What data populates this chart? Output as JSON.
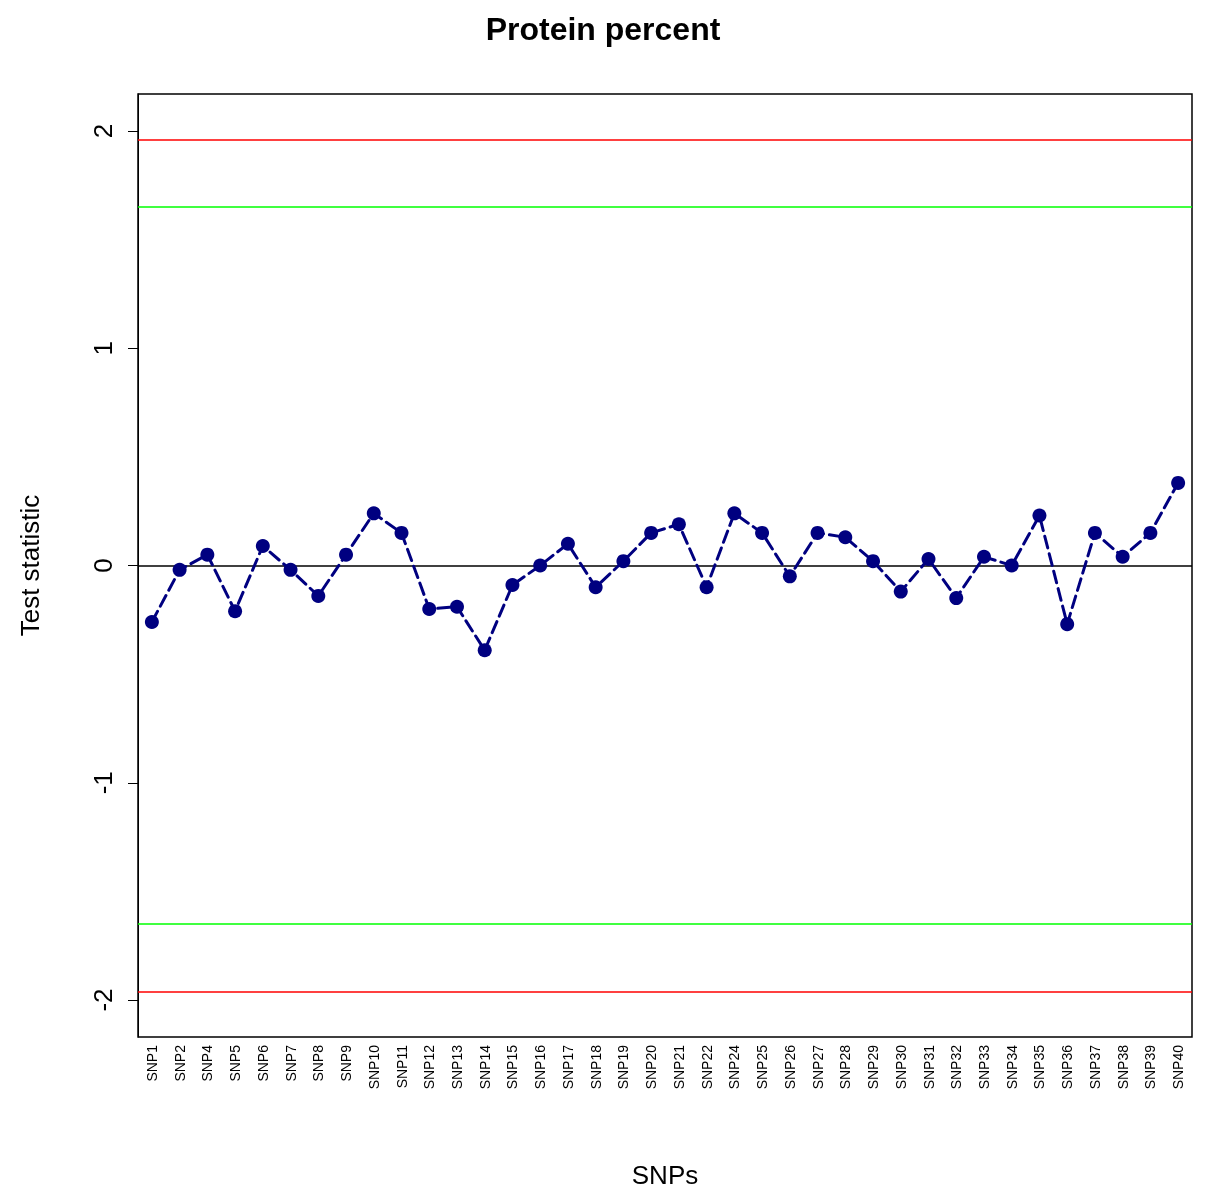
{
  "chart_data": {
    "type": "line",
    "title": "Protein percent",
    "xlabel": "SNPs",
    "ylabel": "Test statistic",
    "categories": [
      "SNP1",
      "SNP2",
      "SNP4",
      "SNP5",
      "SNP6",
      "SNP7",
      "SNP8",
      "SNP9",
      "SNP10",
      "SNP11",
      "SNP12",
      "SNP13",
      "SNP14",
      "SNP15",
      "SNP16",
      "SNP17",
      "SNP18",
      "SNP19",
      "SNP20",
      "SNP21",
      "SNP22",
      "SNP24",
      "SNP25",
      "SNP26",
      "SNP27",
      "SNP28",
      "SNP29",
      "SNP30",
      "SNP31",
      "SNP32",
      "SNP33",
      "SNP34",
      "SNP35",
      "SNP36",
      "SNP37",
      "SNP38",
      "SNP39",
      "SNP40"
    ],
    "series": [
      {
        "color": "#000080",
        "values": [
          -0.26,
          -0.02,
          0.05,
          -0.21,
          0.09,
          -0.02,
          -0.14,
          0.05,
          0.24,
          0.15,
          -0.2,
          -0.19,
          -0.39,
          -0.09,
          0.0,
          0.1,
          -0.1,
          0.02,
          0.15,
          0.19,
          -0.1,
          0.24,
          0.15,
          -0.05,
          0.15,
          0.13,
          0.02,
          -0.12,
          0.03,
          -0.15,
          0.04,
          0.0,
          0.23,
          -0.27,
          0.15,
          0.04,
          0.15,
          0.38
        ]
      }
    ],
    "ylim": [
      -2.17,
      2.17
    ],
    "yticks": [
      -2,
      -1,
      0,
      1,
      2
    ],
    "grid": false,
    "marker": "circle",
    "line_style": "dashed",
    "ref_lines": [
      {
        "axis": "y",
        "value": 0,
        "color": "#000000"
      },
      {
        "axis": "y",
        "value": 1.96,
        "color": "#ff0000"
      },
      {
        "axis": "y",
        "value": -1.96,
        "color": "#ff0000"
      },
      {
        "axis": "y",
        "value": 1.645,
        "color": "#00ff00"
      },
      {
        "axis": "y",
        "value": -1.645,
        "color": "#00ff00"
      }
    ]
  }
}
